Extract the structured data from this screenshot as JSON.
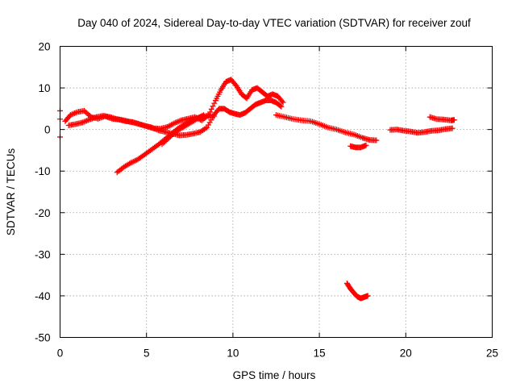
{
  "chart_data": {
    "type": "scatter",
    "title": "Day 040 of 2024, Sidereal Day-to-day VTEC variation (SDTVAR) for receiver zouf",
    "xlabel": "GPS time / hours",
    "ylabel": "SDTVAR / TECUs",
    "xlim": [
      0,
      25
    ],
    "ylim": [
      -50,
      20
    ],
    "xticks": [
      "0",
      "5",
      "10",
      "15",
      "20",
      "25"
    ],
    "yticks": [
      "20",
      "10",
      "0",
      "-10",
      "-20",
      "-30",
      "-40",
      "-50"
    ],
    "grid": true,
    "marker": "plus",
    "color": "#ff0000",
    "series": [
      {
        "name": "arc-main-upper",
        "x": [
          0.3,
          0.6,
          1.0,
          1.4,
          1.8,
          2.2,
          2.6,
          3.0,
          3.4,
          3.8,
          4.2,
          4.6,
          5.0,
          5.4,
          5.8,
          6.2,
          6.6,
          7.0,
          7.4,
          7.8,
          8.2,
          8.6,
          9.0,
          9.3,
          9.6,
          9.9,
          10.2,
          10.5,
          10.8,
          11.1,
          11.4,
          11.7,
          12.0,
          12.3,
          12.6,
          12.9
        ],
        "y": [
          2.0,
          3.5,
          4.2,
          4.5,
          3.0,
          2.6,
          3.2,
          2.6,
          2.4,
          2.0,
          1.8,
          1.3,
          0.8,
          0.3,
          0.2,
          0.6,
          1.5,
          2.2,
          2.6,
          3.0,
          2.2,
          3.5,
          7.0,
          9.5,
          11.5,
          12.0,
          10.5,
          8.5,
          7.5,
          9.5,
          10.0,
          9.0,
          8.0,
          8.5,
          8.0,
          6.5
        ]
      },
      {
        "name": "arc-main-lower",
        "x": [
          0.5,
          0.9,
          1.3,
          1.7,
          2.1,
          2.5,
          2.9,
          3.3,
          3.7,
          4.1,
          4.5,
          4.9,
          5.3,
          5.7,
          6.1,
          6.5,
          6.9,
          7.3,
          7.7,
          8.1,
          8.5,
          8.9,
          9.2,
          9.5,
          9.8,
          10.1,
          10.4,
          10.7,
          11.0,
          11.3,
          11.6,
          11.9,
          12.2,
          12.5,
          12.8
        ],
        "y": [
          1.0,
          1.3,
          1.7,
          2.4,
          3.0,
          3.3,
          3.0,
          2.5,
          2.2,
          1.8,
          1.4,
          0.9,
          0.5,
          -0.2,
          -0.6,
          -1.0,
          -1.4,
          -1.3,
          -1.0,
          -0.6,
          0.5,
          3.5,
          5.0,
          5.0,
          4.2,
          3.8,
          3.5,
          4.0,
          5.0,
          6.0,
          6.5,
          7.0,
          7.0,
          6.5,
          5.5
        ]
      },
      {
        "name": "arc-rising",
        "x": [
          3.3,
          3.7,
          4.1,
          4.5,
          4.9,
          5.3,
          5.7,
          6.1,
          6.5,
          6.9,
          7.3,
          7.7,
          8.1,
          8.5,
          8.9
        ],
        "y": [
          -10.3,
          -9.0,
          -8.0,
          -7.2,
          -6.0,
          -4.8,
          -3.6,
          -2.2,
          -0.8,
          0.5,
          1.5,
          2.4,
          3.0,
          3.3,
          3.2
        ]
      },
      {
        "name": "arc-cross-down",
        "x": [
          5.9,
          6.3,
          6.7,
          7.1,
          7.5,
          7.9,
          8.3
        ],
        "y": [
          -3.5,
          -2.0,
          -0.5,
          0.5,
          1.5,
          2.5,
          3.5
        ]
      },
      {
        "name": "arc-afternoon",
        "x": [
          12.5,
          13.0,
          13.5,
          14.0,
          14.5,
          15.0,
          15.5,
          16.0,
          16.5,
          17.0,
          17.5,
          17.9,
          18.3
        ],
        "y": [
          3.5,
          3.0,
          2.5,
          2.2,
          2.0,
          1.3,
          0.5,
          0.0,
          -0.7,
          -1.2,
          -2.0,
          -2.5,
          -2.6
        ]
      },
      {
        "name": "arc-afternoon-low",
        "x": [
          16.8,
          17.1,
          17.4,
          17.7
        ],
        "y": [
          -4.0,
          -4.3,
          -4.3,
          -3.8
        ]
      },
      {
        "name": "arc-evening",
        "x": [
          19.1,
          19.5,
          19.9,
          20.3,
          20.7,
          21.1,
          21.5,
          21.9,
          22.3,
          22.7
        ],
        "y": [
          -0.1,
          0.0,
          -0.3,
          -0.5,
          -0.8,
          -0.6,
          -0.3,
          -0.2,
          0.1,
          0.3
        ]
      },
      {
        "name": "arc-evening-upper",
        "x": [
          21.4,
          21.8,
          22.2,
          22.6,
          22.8
        ],
        "y": [
          3.0,
          2.5,
          2.4,
          2.2,
          2.3
        ]
      },
      {
        "name": "arc-outlier",
        "x": [
          16.6,
          16.8,
          17.0,
          17.2,
          17.4,
          17.6,
          17.8
        ],
        "y": [
          -37.0,
          -38.3,
          -39.3,
          -40.2,
          -40.6,
          -40.3,
          -40.0
        ]
      },
      {
        "name": "early-isolated",
        "x": [
          0.0,
          0.0,
          0.0
        ],
        "y": [
          4.5,
          2.5,
          -1.8
        ]
      }
    ]
  }
}
